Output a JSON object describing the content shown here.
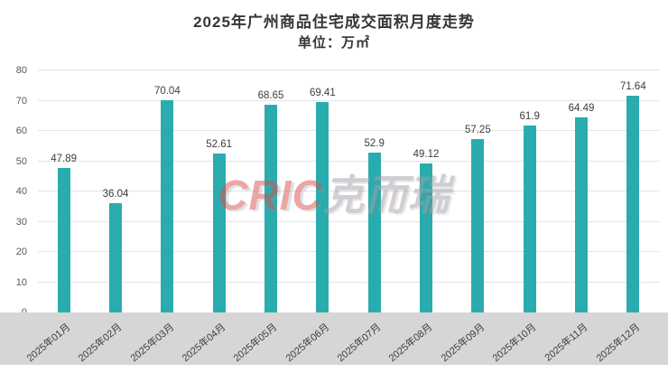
{
  "title": "2025年广州商品住宅成交面积月度走势",
  "subtitle": "单位：万㎡",
  "watermark": {
    "primary": "CRIC",
    "secondary": "克而瑞"
  },
  "colors": {
    "bar": "#2aacae",
    "band": "#d6d6d6",
    "grid": "#e4e4e4",
    "axis": "#bdbdbd",
    "title_text": "#363636",
    "tick_text": "#595959",
    "watermark_red": "#d94f4f",
    "watermark_gray": "#9aa3ab"
  },
  "chart_data": {
    "type": "bar",
    "title": "2025年广州商品住宅成交面积月度走势",
    "subtitle": "单位：万㎡",
    "categories": [
      "2025年01月",
      "2025年02月",
      "2025年03月",
      "2025年04月",
      "2025年05月",
      "2025年06月",
      "2025年07月",
      "2025年08月",
      "2025年09月",
      "2025年10月",
      "2025年11月",
      "2025年12月"
    ],
    "values": [
      47.89,
      36.04,
      70.04,
      52.61,
      68.65,
      69.41,
      52.9,
      49.12,
      57.25,
      61.9,
      64.49,
      71.64
    ],
    "data_labels": [
      "47.89",
      "36.04",
      "70.04",
      "52.61",
      "68.65",
      "69.41",
      "52.9",
      "49.12",
      "57.25",
      "61.9",
      "64.49",
      "71.64"
    ],
    "xlabel": "",
    "ylabel": "万㎡",
    "ylim": [
      0,
      80
    ],
    "ytick_step": 10,
    "grid": true,
    "legend": "none"
  }
}
